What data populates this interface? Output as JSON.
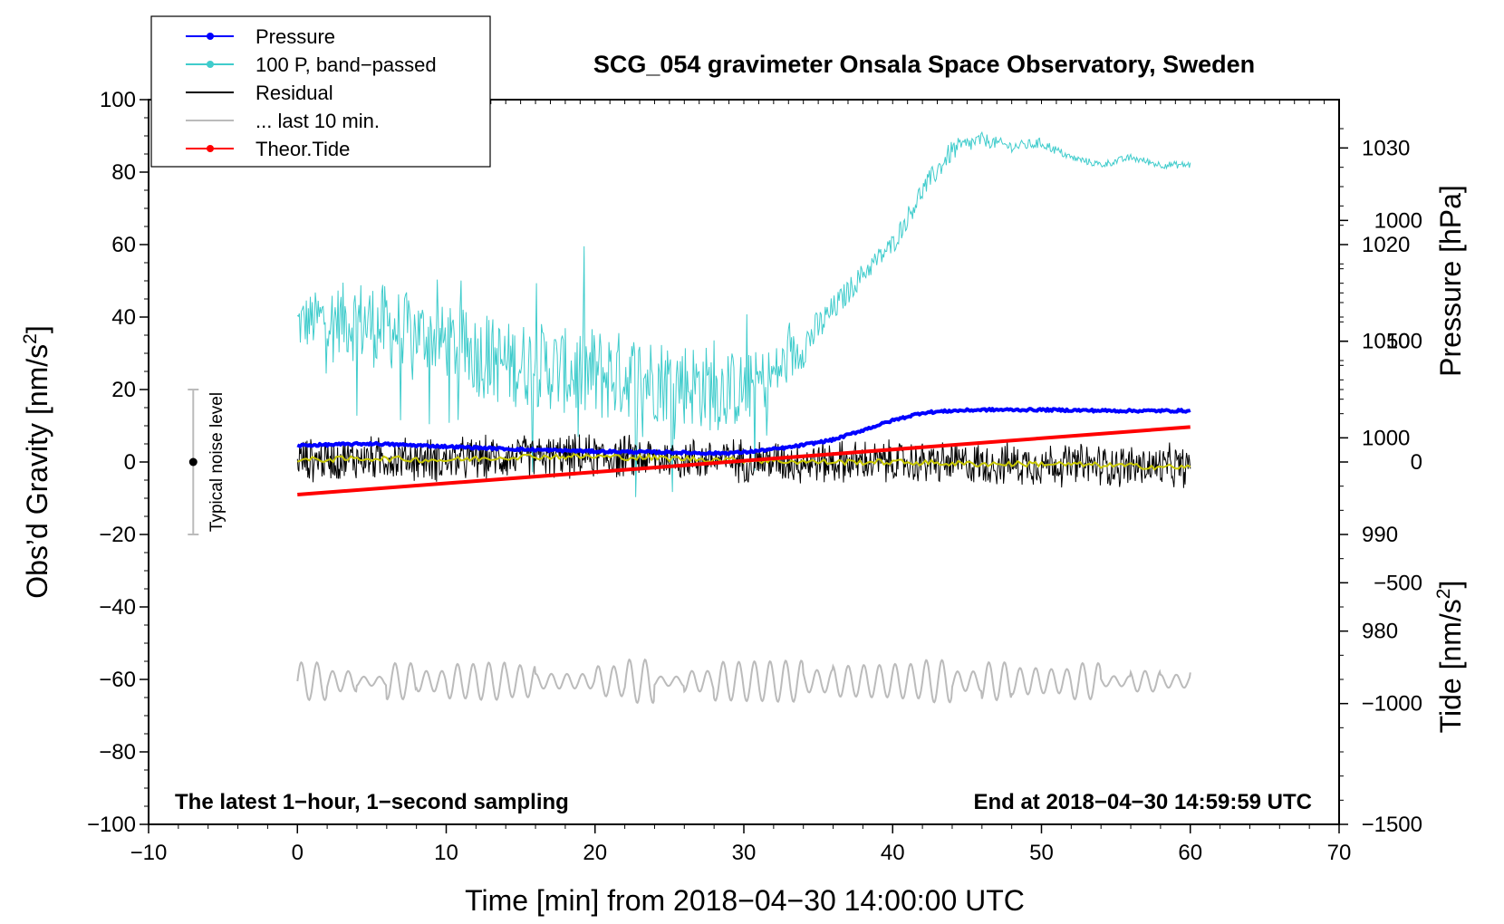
{
  "chart_data": {
    "type": "line",
    "title": "SCG_054 gravimeter Onsala Space Observatory, Sweden",
    "xlabel": "Time [min] from 2018−04−30 14:00:00 UTC",
    "ylabel_left": "Obs’d Gravity [nm/s",
    "ylabel_left_sup": "2",
    "ylabel_left_close": "]",
    "ylabel_right_pressure": "Pressure [hPa]",
    "ylabel_right_tide": "Tide [nm/s",
    "ylabel_right_tide_sup": "2",
    "ylabel_right_tide_close": "]",
    "annotation_left": "The latest 1−hour, 1−second sampling",
    "annotation_right": "End at 2018−04−30 14:59:59 UTC",
    "noise_label": "Typical noise level",
    "xlim": [
      -10,
      70
    ],
    "ylim_left": [
      -100,
      100
    ],
    "ylim_pressure": [
      960,
      1035
    ],
    "ylim_tide": [
      -1500,
      1500
    ],
    "x_ticks": [
      {
        "value": -10,
        "label": "−10"
      },
      {
        "value": 0,
        "label": "0"
      },
      {
        "value": 10,
        "label": "10"
      },
      {
        "value": 20,
        "label": "20"
      },
      {
        "value": 30,
        "label": "30"
      },
      {
        "value": 40,
        "label": "40"
      },
      {
        "value": 50,
        "label": "50"
      },
      {
        "value": 60,
        "label": "60"
      },
      {
        "value": 70,
        "label": "70"
      }
    ],
    "y_ticks_left": [
      {
        "value": -100,
        "label": "−100"
      },
      {
        "value": -80,
        "label": "−80"
      },
      {
        "value": -60,
        "label": "−60"
      },
      {
        "value": -40,
        "label": "−40"
      },
      {
        "value": -20,
        "label": "−20"
      },
      {
        "value": 0,
        "label": "0"
      },
      {
        "value": 20,
        "label": "20"
      },
      {
        "value": 40,
        "label": "40"
      },
      {
        "value": 60,
        "label": "60"
      },
      {
        "value": 80,
        "label": "80"
      },
      {
        "value": 100,
        "label": "100"
      }
    ],
    "y_ticks_pressure": [
      {
        "value": 980,
        "label": "980"
      },
      {
        "value": 990,
        "label": "990"
      },
      {
        "value": 1000,
        "label": "1000"
      },
      {
        "value": 1010,
        "label": "1010"
      },
      {
        "value": 1020,
        "label": "1020"
      },
      {
        "value": 1030,
        "label": "1030"
      }
    ],
    "y_ticks_tide": [
      {
        "value": -1500,
        "label": "−1500"
      },
      {
        "value": -1000,
        "label": "−1000"
      },
      {
        "value": -500,
        "label": "−500"
      },
      {
        "value": 0,
        "label": "0"
      },
      {
        "value": 500,
        "label": "500"
      },
      {
        "value": 1000,
        "label": "1000"
      }
    ],
    "legend": {
      "position": "top-left",
      "entries": [
        {
          "label": "Pressure",
          "color": "#0000ff",
          "marker": true
        },
        {
          "label": "100 P, band−passed",
          "color": "#40cccc",
          "marker": true
        },
        {
          "label": "Residual",
          "color": "#000000",
          "marker": false
        },
        {
          "label": "... last 10 min.",
          "color": "#bbbbbb",
          "marker": false
        },
        {
          "label": "Theor.Tide",
          "color": "#ff0000",
          "marker": true
        }
      ]
    },
    "noise_bar": {
      "x": -7,
      "center": 0,
      "low": -20,
      "high": 20
    },
    "series": [
      {
        "name": "Pressure",
        "axis": "pressure",
        "color": "#0000ff",
        "x": [
          0,
          5,
          10,
          15,
          20,
          25,
          28,
          30,
          33,
          36,
          38,
          40,
          42,
          44,
          46,
          50,
          55,
          60
        ],
        "values": [
          999.2,
          999.4,
          999.1,
          998.8,
          998.6,
          998.5,
          998.4,
          998.5,
          999.0,
          999.8,
          1000.8,
          1001.8,
          1002.6,
          1002.8,
          1002.9,
          1002.9,
          1002.8,
          1002.8
        ]
      },
      {
        "name": "100 P, band−passed",
        "axis": "left",
        "color": "#40cccc",
        "x": [
          0,
          2,
          4,
          6,
          8,
          10,
          12,
          14,
          16,
          18,
          20,
          22,
          24,
          26,
          28,
          30,
          32,
          34,
          36,
          38,
          40,
          42,
          44,
          46,
          48,
          50,
          52,
          54,
          56,
          58,
          60
        ],
        "values": [
          38,
          40,
          39,
          37,
          36,
          33,
          30,
          27,
          27,
          25,
          24,
          24,
          23,
          22,
          20,
          20,
          24,
          32,
          42,
          52,
          60,
          75,
          86,
          89,
          87,
          88,
          84,
          82,
          84,
          82,
          82
        ],
        "noise_amplitude": [
          8,
          8,
          12,
          12,
          10,
          10,
          12,
          12,
          12,
          12,
          14,
          12,
          12,
          12,
          12,
          10,
          8,
          6,
          4,
          3,
          3,
          3,
          3,
          2,
          1.5,
          1.5,
          1,
          1,
          1,
          1,
          1
        ]
      },
      {
        "name": "Residual",
        "axis": "left",
        "color": "#000000",
        "x": [
          0,
          5,
          10,
          15,
          20,
          25,
          30,
          35,
          40,
          45,
          50,
          55,
          60
        ],
        "values": [
          0.5,
          1,
          0.5,
          1.5,
          1.5,
          1,
          0.5,
          0,
          0,
          -0.5,
          -0.5,
          -1,
          -1.5
        ],
        "noise_amplitude": 5
      },
      {
        "name": "Residual (smoothed)",
        "axis": "left",
        "color": "#c8c800",
        "x": [
          0,
          5,
          10,
          15,
          20,
          25,
          30,
          35,
          40,
          45,
          50,
          55,
          60
        ],
        "values": [
          0.5,
          1,
          0.5,
          1.5,
          1.5,
          1,
          0.5,
          0,
          0,
          -0.5,
          -0.5,
          -1,
          -1.5
        ]
      },
      {
        "name": "... last 10 min.",
        "axis": "left",
        "color": "#bbbbbb",
        "x": [
          0,
          60
        ],
        "baseline": -60.5,
        "oscillation_amplitude": 4
      },
      {
        "name": "Theor.Tide",
        "axis": "tide",
        "color": "#ff0000",
        "x": [
          0,
          60
        ],
        "values": [
          -135,
          145
        ]
      }
    ]
  }
}
